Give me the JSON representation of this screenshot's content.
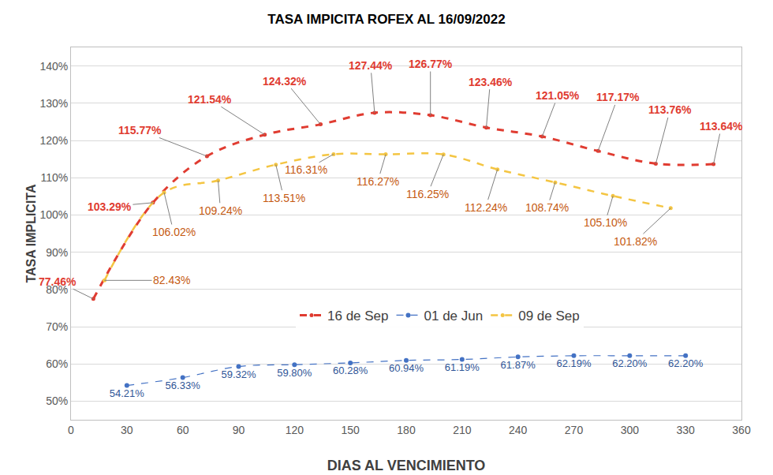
{
  "chart_data": {
    "type": "line",
    "title": "TASA IMPICITA ROFEX AL 16/09/2022",
    "x_label": "DIAS AL VENCIMIENTO",
    "y_label": "TASA IMPLICITA",
    "xlim": [
      0,
      360
    ],
    "xticks": [
      0,
      30,
      60,
      90,
      120,
      150,
      180,
      210,
      240,
      270,
      300,
      330,
      360
    ],
    "ylim": [
      45,
      145
    ],
    "yticks": [
      {
        "value": 50,
        "label": "50%"
      },
      {
        "value": 60,
        "label": "60%"
      },
      {
        "value": 70,
        "label": "70%"
      },
      {
        "value": 80,
        "label": "80%"
      },
      {
        "value": 90,
        "label": "90%"
      },
      {
        "value": 100,
        "label": "100%"
      },
      {
        "value": 110,
        "label": "110%"
      },
      {
        "value": 120,
        "label": "120%"
      },
      {
        "value": 130,
        "label": "130%"
      },
      {
        "value": 140,
        "label": "140%"
      }
    ],
    "grid": true,
    "legend": "center",
    "data_labels": true,
    "series": [
      {
        "name": "16 de Sep",
        "color": "#e03c31",
        "line_style": "dash",
        "marker": "circle",
        "x": [
          12,
          44,
          73,
          104,
          134,
          163,
          193,
          223,
          253,
          283,
          314,
          345
        ],
        "values": [
          77.46,
          103.29,
          115.77,
          121.54,
          124.32,
          127.44,
          126.77,
          123.46,
          121.05,
          117.17,
          113.76,
          113.64
        ],
        "value_labels": [
          "77.46%",
          "103.29%",
          "115.77%",
          "121.54%",
          "124.32%",
          "127.44%",
          "126.77%",
          "123.46%",
          "121.05%",
          "117.17%",
          "113.76%",
          "113.64%"
        ]
      },
      {
        "name": "01 de Jun",
        "color": "#4472c4",
        "line_style": "dash",
        "marker": "circle",
        "x": [
          30,
          60,
          90,
          120,
          150,
          180,
          210,
          240,
          270,
          300,
          330
        ],
        "values": [
          54.21,
          56.33,
          59.32,
          59.8,
          60.28,
          60.94,
          61.19,
          61.87,
          62.19,
          62.2,
          62.2
        ],
        "value_labels": [
          "54.21%",
          "56.33%",
          "59.32%",
          "59.80%",
          "60.28%",
          "60.94%",
          "61.19%",
          "61.87%",
          "62.19%",
          "62.20%",
          "62.20%"
        ]
      },
      {
        "name": "09 de Sep",
        "color": "#f4c542",
        "line_style": "dash",
        "marker": "circle",
        "x": [
          18,
          50,
          79,
          110,
          141,
          169,
          200,
          229,
          260,
          291,
          322
        ],
        "values": [
          82.43,
          106.02,
          109.24,
          113.51,
          116.31,
          116.27,
          116.25,
          112.24,
          108.74,
          105.1,
          101.82
        ],
        "value_labels": [
          "82.43%",
          "106.02%",
          "109.24%",
          "113.51%",
          "116.31%",
          "116.27%",
          "116.25%",
          "112.24%",
          "108.74%",
          "105.10%",
          "101.82%"
        ]
      }
    ]
  }
}
